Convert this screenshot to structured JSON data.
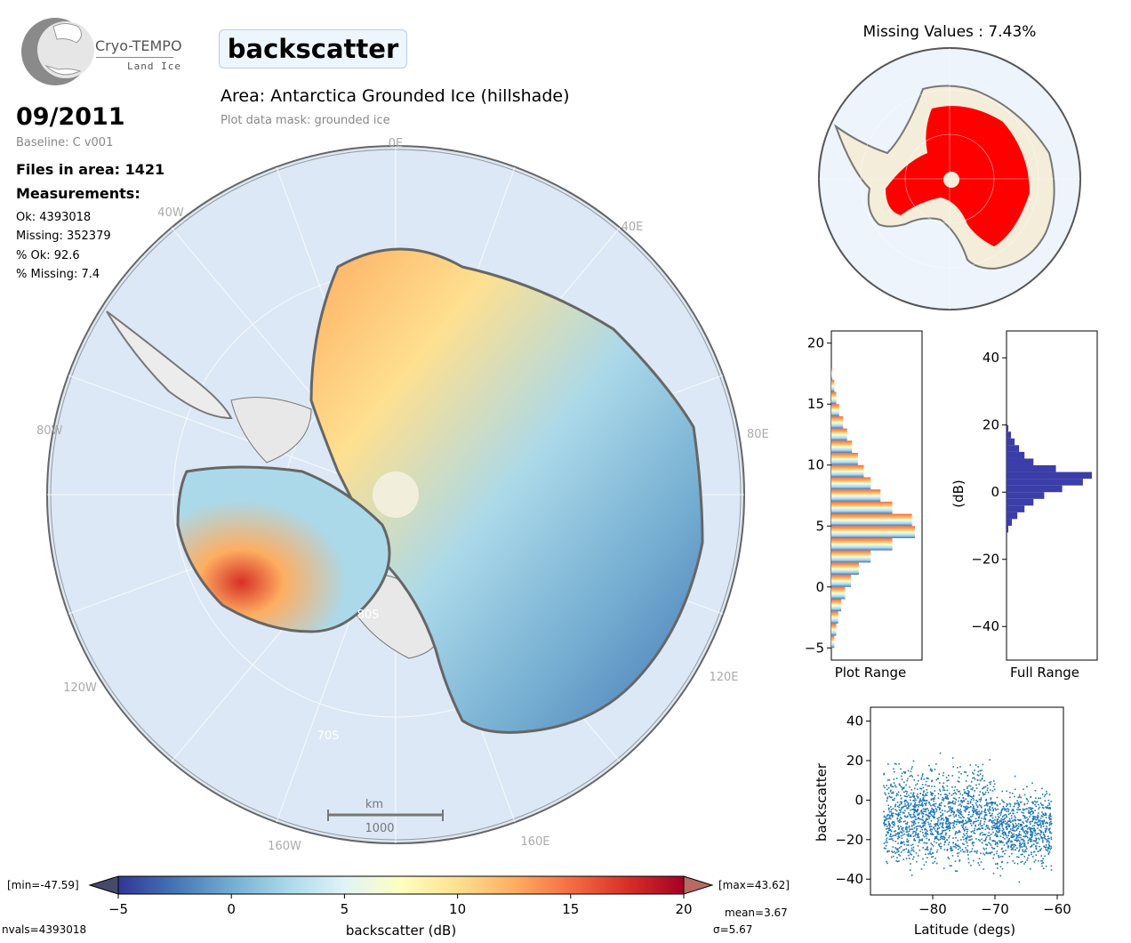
{
  "logo": {
    "name": "Cryo-TEMPO",
    "subtitle": "Land Ice"
  },
  "parameter": "backscatter",
  "area_title": "Area: Antarctica Grounded Ice (hillshade)",
  "mask_note": "Plot data mask: grounded ice",
  "date": "09/2011",
  "baseline": "Baseline: C v001",
  "files_in_area": "Files in area: 1421",
  "measurements_label": "Measurements:",
  "stats": [
    "Ok: 4393018",
    "Missing: 352379",
    "% Ok: 92.6",
    "% Missing: 7.4"
  ],
  "map": {
    "grid_labels": {
      "lon_0E": "0E",
      "lon_40W": "40W",
      "lon_40E": "40E",
      "lon_80W": "80W",
      "lon_80E": "80E",
      "lon_120W": "120W",
      "lon_120E": "120E",
      "lon_160W": "160W",
      "lon_160E": "160E",
      "lat_80S": "80S",
      "lat_70S": "70S"
    },
    "scale_unit": "km",
    "scale_value": "1000",
    "colors": {
      "ocean": "#dce8f5",
      "ice_shelf": "#e8e8e8",
      "coast": "#777777",
      "pole_hole": "#f1efdc"
    }
  },
  "colorbar": {
    "min_label": "[min=-47.59]",
    "max_label": "[max=43.62]",
    "ticks": [
      "−5",
      "0",
      "5",
      "10",
      "15",
      "20"
    ],
    "label": "backscatter (dB)",
    "mean": "mean=3.67",
    "sigma": "σ=5.67",
    "nvals": "nvals=4393018",
    "colors": [
      "#313695",
      "#4575b4",
      "#74add1",
      "#abd9e9",
      "#e0f3f8",
      "#ffffbf",
      "#fee090",
      "#fdae61",
      "#f46d43",
      "#d73027",
      "#a50026"
    ]
  },
  "missing_map": {
    "title": "Missing Values : 7.43%",
    "missing_color": "#ff0000",
    "land_color": "#f3edd9"
  },
  "chart_data": [
    {
      "type": "bar",
      "name": "Plot Range histogram",
      "xlabel": "Plot Range",
      "ylabel": "",
      "ylim": [
        -6,
        21
      ],
      "yticks": [
        "−5",
        "0",
        "5",
        "10",
        "15",
        "20"
      ],
      "bins_y": [
        -5,
        -4,
        -3,
        -2,
        -1,
        0,
        1,
        2,
        3,
        4,
        5,
        6,
        7,
        8,
        9,
        10,
        11,
        12,
        13,
        14,
        15,
        16,
        17
      ],
      "counts": [
        3,
        5,
        7,
        10,
        14,
        20,
        28,
        40,
        62,
        85,
        82,
        62,
        50,
        40,
        33,
        27,
        21,
        16,
        12,
        8,
        5,
        3,
        1
      ]
    },
    {
      "type": "bar",
      "name": "Full Range histogram",
      "xlabel": "Full Range",
      "ylabel": "(dB)",
      "ylim": [
        -50,
        48
      ],
      "yticks": [
        "40",
        "20",
        "0",
        "−20",
        "−40"
      ],
      "color": "#3b3da8",
      "bins_y": [
        -12,
        -10,
        -8,
        -6,
        -4,
        -2,
        0,
        2,
        4,
        6,
        8,
        10,
        12,
        14,
        16,
        18
      ],
      "counts": [
        2,
        6,
        12,
        20,
        30,
        42,
        62,
        85,
        95,
        55,
        30,
        20,
        14,
        9,
        5,
        2
      ]
    },
    {
      "type": "scatter",
      "xlabel": "Latitude (degs)",
      "ylabel": "backscatter",
      "xlim": [
        -90,
        -59
      ],
      "ylim": [
        -48,
        47
      ],
      "xticks": [
        "−80",
        "−70",
        "−60"
      ],
      "yticks": [
        "40",
        "20",
        "0",
        "−20",
        "−40"
      ],
      "color": "#1f77b4",
      "note": "dense point cloud between lat -88 and -61, values mostly -40 to 25"
    }
  ]
}
